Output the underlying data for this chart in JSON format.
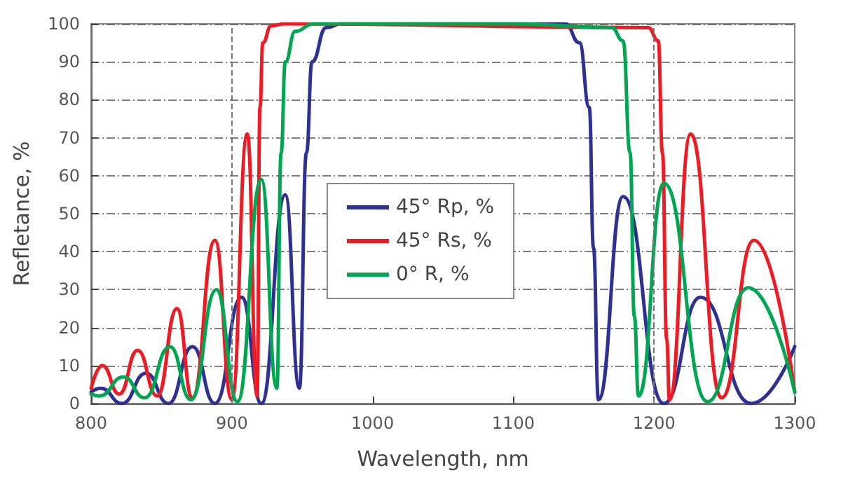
{
  "chart_data": {
    "type": "line",
    "xlabel": "Wavelength, nm",
    "ylabel": "Refletance, %",
    "xlim": [
      800,
      1300
    ],
    "xticks": [
      800,
      900,
      1000,
      1100,
      1200,
      1300
    ],
    "ylim": [
      0,
      100
    ],
    "yticks": [
      0,
      10,
      20,
      30,
      40,
      50,
      60,
      70,
      80,
      90,
      100
    ],
    "grid": "y",
    "legend": "center",
    "marker": "none",
    "line_style": "solid",
    "ref_lines": [
      {
        "axis": "x",
        "value": 900,
        "color": "#777777",
        "line_style": "dashed"
      },
      {
        "axis": "x",
        "value": 1200,
        "color": "#777777",
        "line_style": "dashed"
      }
    ],
    "series": [
      {
        "name": "45° Rp, %",
        "color": "#2e3192",
        "x": [
          800,
          807,
          822,
          839,
          855,
          872,
          888,
          907,
          921,
          938,
          948,
          953,
          957,
          967,
          978,
          1100,
          1137,
          1147,
          1154,
          1157,
          1160.5,
          1178,
          1207,
          1233,
          1269,
          1300
        ],
        "values": [
          3,
          4,
          0,
          8,
          0,
          15,
          0,
          28,
          0,
          55,
          4,
          66,
          90,
          99,
          100,
          100,
          100,
          95,
          78,
          41,
          1,
          54.5,
          0,
          28,
          0,
          15
        ]
      },
      {
        "name": "45° Rs, %",
        "color": "#ed1c24",
        "x": [
          800,
          808,
          820,
          833,
          847,
          861,
          872,
          888,
          900,
          911,
          918,
          920,
          922,
          928,
          938,
          1196,
          1203,
          1206,
          1209,
          1211,
          1226,
          1248,
          1271,
          1300
        ],
        "values": [
          4,
          10,
          2.5,
          14,
          2,
          25,
          1.5,
          43,
          1,
          71,
          2,
          78,
          95,
          99.5,
          100,
          99,
          95.5,
          66,
          17,
          1,
          71,
          1.5,
          43,
          3
        ]
      },
      {
        "name": "0° R, %",
        "color": "#00a651",
        "x": [
          800,
          806,
          823,
          838,
          856,
          871,
          889,
          904,
          921,
          932,
          935,
          938,
          945,
          958,
          1100,
          1170,
          1178,
          1183,
          1186,
          1189,
          1207,
          1238,
          1267,
          1300
        ],
        "values": [
          2.5,
          2,
          7,
          1.5,
          15,
          1,
          30,
          0.5,
          59,
          4,
          66,
          90,
          98,
          100,
          100,
          99,
          95.5,
          66,
          23,
          2,
          58,
          0.5,
          30.5,
          3
        ]
      }
    ]
  }
}
